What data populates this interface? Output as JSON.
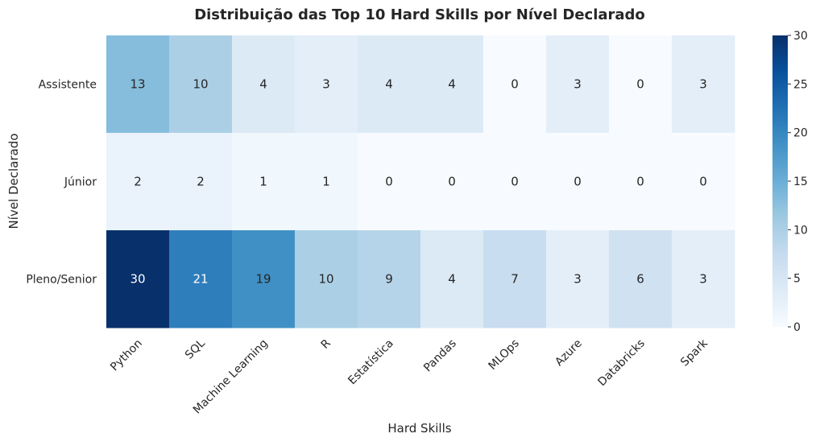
{
  "chart_data": {
    "type": "heatmap",
    "title": "Distribuição das Top 10 Hard Skills por Nível Declarado",
    "xlabel": "Hard Skills",
    "ylabel": "Nível Declarado",
    "x_categories": [
      "Python",
      "SQL",
      "Machine Learning",
      "R",
      "Estatística",
      "Pandas",
      "MLOps",
      "Azure",
      "Databricks",
      "Spark"
    ],
    "y_categories": [
      "Assistente",
      "Júnior",
      "Pleno/Senior"
    ],
    "values": [
      [
        13,
        10,
        4,
        3,
        4,
        4,
        0,
        3,
        0,
        3
      ],
      [
        2,
        2,
        1,
        1,
        0,
        0,
        0,
        0,
        0,
        0
      ],
      [
        30,
        21,
        19,
        10,
        9,
        4,
        7,
        3,
        6,
        3
      ]
    ],
    "colormap": "Blues",
    "colorbar": {
      "range": [
        0,
        30
      ],
      "ticks": [
        "0",
        "5",
        "10",
        "15",
        "20",
        "25",
        "30"
      ]
    },
    "annotations": true
  }
}
